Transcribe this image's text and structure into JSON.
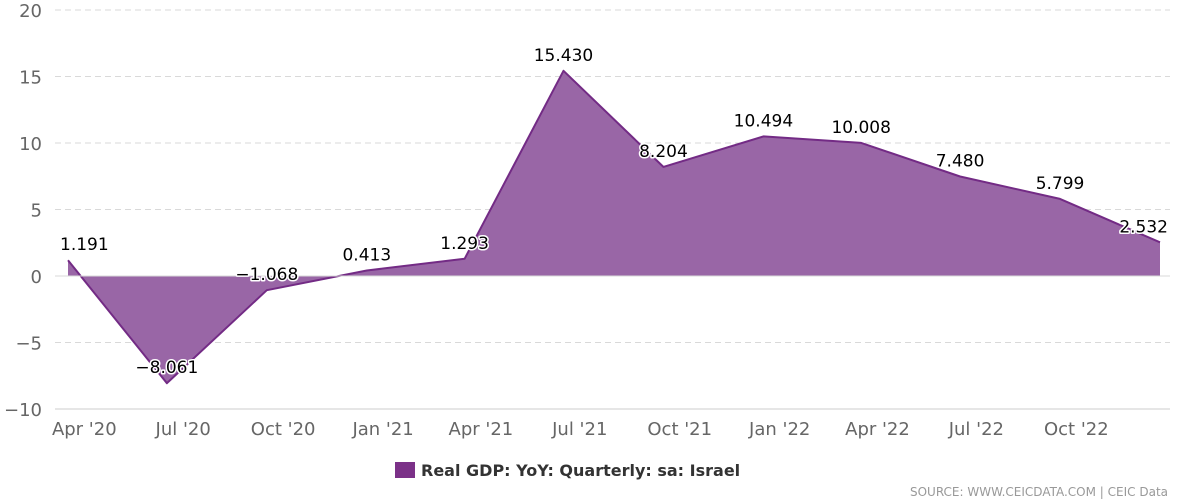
{
  "chart_data": {
    "type": "area",
    "categories": [
      "Apr '20",
      "Jul '20",
      "Oct '20",
      "Jan '21",
      "Apr '21",
      "Jul '21",
      "Oct '21",
      "Jan '22",
      "Apr '22",
      "Jul '22",
      "Oct '22"
    ],
    "x": [
      "2020-03",
      "2020-06",
      "2020-09",
      "2020-12",
      "2021-03",
      "2021-06",
      "2021-09",
      "2021-12",
      "2022-03",
      "2022-06",
      "2022-09",
      "2022-12"
    ],
    "series": [
      {
        "name": "Real GDP: YoY: Quarterly: sa: Israel",
        "values": [
          1.191,
          -8.061,
          -1.068,
          0.413,
          1.293,
          15.43,
          8.204,
          10.494,
          10.008,
          7.48,
          5.799,
          2.532
        ],
        "labels": [
          "1.191",
          "−8.061",
          "−1.068",
          "0.413",
          "1.293",
          "15.430",
          "8.204",
          "10.494",
          "10.008",
          "7.480",
          "5.799",
          "2.532"
        ]
      }
    ],
    "yticks": [
      "20",
      "15",
      "10",
      "5",
      "0",
      "−5",
      "−10"
    ],
    "ytick_values": [
      20,
      15,
      10,
      5,
      0,
      -5,
      -10
    ],
    "ylim": [
      -10,
      20
    ],
    "grid": true,
    "legend_position": "bottom-center",
    "colors": {
      "fill": "#9966a6",
      "line": "#732b85",
      "legend": "#7b3188",
      "grid": "#d9d9d9"
    }
  },
  "source": "SOURCE: WWW.CEICDATA.COM | CEIC Data"
}
